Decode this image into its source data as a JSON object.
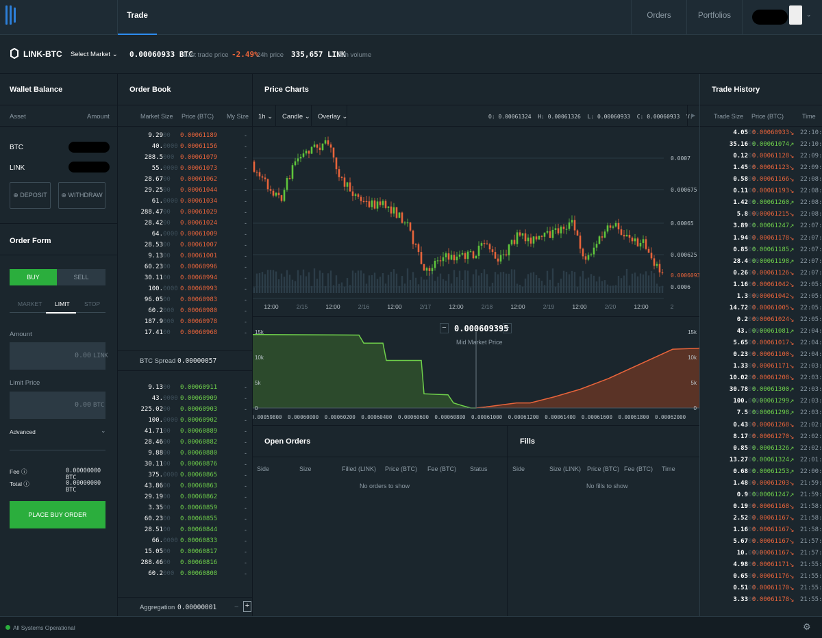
{
  "nav": {
    "trade": "Trade",
    "orders": "Orders",
    "portfolios": "Portfolios"
  },
  "ticker": {
    "market": "LINK-BTC",
    "select_market": "Select Market",
    "price": "0.00060933",
    "price_unit": "BTC",
    "price_label": "Last trade price",
    "change": "-2.49%",
    "change_label": "24h price",
    "volume": "335,657",
    "volume_unit": "LINK",
    "volume_label": "24h volume"
  },
  "wallet": {
    "title": "Wallet Balance",
    "col_asset": "Asset",
    "col_amount": "Amount",
    "assets": [
      "BTC",
      "LINK"
    ],
    "deposit": "DEPOSIT",
    "withdraw": "WITHDRAW"
  },
  "order_form": {
    "title": "Order Form",
    "buy": "BUY",
    "sell": "SELL",
    "tabs": [
      "MARKET",
      "LIMIT",
      "STOP"
    ],
    "amount_label": "Amount",
    "amount_value": "0.00",
    "amount_unit": "LINK",
    "limit_label": "Limit Price",
    "limit_value": "0.00",
    "limit_unit": "BTC",
    "advanced": "Advanced",
    "fee_label": "Fee",
    "fee_value": "0.00000000",
    "fee_unit": "BTC",
    "total_label": "Total",
    "total_value": "0.00000000",
    "total_unit": "BTC",
    "place": "PLACE BUY ORDER"
  },
  "order_book": {
    "title": "Order Book",
    "cols": [
      "Market Size",
      "Price (BTC)",
      "My Size"
    ],
    "asks": [
      [
        "9.29",
        "00",
        "0.00061189"
      ],
      [
        "40.",
        "0000",
        "0.00061156"
      ],
      [
        "288.5",
        "000",
        "0.00061079"
      ],
      [
        "55.",
        "0000",
        "0.00061073"
      ],
      [
        "28.67",
        "00",
        "0.00061062"
      ],
      [
        "29.25",
        "00",
        "0.00061044"
      ],
      [
        "61.",
        "0000",
        "0.00061034"
      ],
      [
        "288.47",
        "00",
        "0.00061029"
      ],
      [
        "28.42",
        "00",
        "0.00061024"
      ],
      [
        "64.",
        "0000",
        "0.00061009"
      ],
      [
        "28.53",
        "00",
        "0.00061007"
      ],
      [
        "9.13",
        "00",
        "0.00061001"
      ],
      [
        "60.23",
        "00",
        "0.00060996"
      ],
      [
        "30.11",
        "00",
        "0.00060994"
      ],
      [
        "100.",
        "0000",
        "0.00060993"
      ],
      [
        "96.05",
        "00",
        "0.00060983"
      ],
      [
        "60.2",
        "000",
        "0.00060980"
      ],
      [
        "187.9",
        "000",
        "0.00060978"
      ],
      [
        "17.41",
        "00",
        "0.00060968"
      ]
    ],
    "spread_label": "BTC Spread",
    "spread_value": "0.00000057",
    "bids": [
      [
        "9.13",
        "00",
        "0.00060911"
      ],
      [
        "43.",
        "0000",
        "0.00060909"
      ],
      [
        "225.02",
        "00",
        "0.00060903"
      ],
      [
        "100.",
        "0000",
        "0.00060902"
      ],
      [
        "41.71",
        "00",
        "0.00060889"
      ],
      [
        "28.46",
        "00",
        "0.00060882"
      ],
      [
        "9.88",
        "00",
        "0.00060880"
      ],
      [
        "30.11",
        "00",
        "0.00060876"
      ],
      [
        "375.",
        "0000",
        "0.00060865"
      ],
      [
        "43.86",
        "00",
        "0.00060863"
      ],
      [
        "29.19",
        "00",
        "0.00060862"
      ],
      [
        "3.35",
        "00",
        "0.00060859"
      ],
      [
        "60.23",
        "00",
        "0.00060855"
      ],
      [
        "28.51",
        "00",
        "0.00060844"
      ],
      [
        "66.",
        "0000",
        "0.00060833"
      ],
      [
        "15.05",
        "00",
        "0.00060817"
      ],
      [
        "288.46",
        "00",
        "0.00060816"
      ],
      [
        "60.2",
        "000",
        "0.00060808"
      ]
    ],
    "aggregation_label": "Aggregation",
    "aggregation_value": "0.00000001"
  },
  "price_chart": {
    "title": "Price Charts",
    "interval": "1h",
    "type": "Candle",
    "overlay": "Overlay",
    "ohlcv": "O: 0.00061324  H: 0.00061326  L: 0.00060933  C: 0.00060933  V:   323",
    "y_ticks": [
      "0.0007",
      "0.000675",
      "0.00065",
      "0.000625",
      "0.0006"
    ],
    "last_price": "0.00060933",
    "x_ticks": [
      "12:00",
      "2/15",
      "12:00",
      "2/16",
      "12:00",
      "2/17",
      "12:00",
      "2/18",
      "12:00",
      "2/19",
      "12:00",
      "2/20",
      "12:00",
      "2"
    ]
  },
  "depth": {
    "mid_price": "0.000609395",
    "mid_label": "Mid Market Price",
    "minus": "−",
    "plus": "+",
    "y_left": [
      "15k",
      "10k",
      "5k",
      "0"
    ],
    "y_right": [
      "15k",
      "10k",
      "5k",
      "0"
    ],
    "x_ticks": [
      "0.00059800",
      "0.00060000",
      "0.00060200",
      "0.00060400",
      "0.00060600",
      "0.00060800",
      "0.00061000",
      "0.00061200",
      "0.00061400",
      "0.00061600",
      "0.00061800",
      "0.00062000"
    ]
  },
  "open_orders": {
    "title": "Open Orders",
    "cols": [
      "Side",
      "Size",
      "Filled (LINK)",
      "Price (BTC)",
      "Fee (BTC)",
      "Status"
    ],
    "empty": "No orders to show"
  },
  "fills": {
    "title": "Fills",
    "cols": [
      "Side",
      "Size (LINK)",
      "Price (BTC)",
      "Fee (BTC)",
      "Time"
    ],
    "empty": "No fills to show"
  },
  "trade_history": {
    "title": "Trade History",
    "cols": [
      "Trade Size",
      "Price (BTC)",
      "Time"
    ],
    "rows": [
      [
        "4.05",
        "00",
        "0.00060933",
        "dn",
        "22:10:55"
      ],
      [
        "35.16",
        "00",
        "0.00061074",
        "up",
        "22:10:41"
      ],
      [
        "0.12",
        "00",
        "0.00061128",
        "dn",
        "22:09:43"
      ],
      [
        "1.45",
        "00",
        "0.00061123",
        "dn",
        "22:09:31"
      ],
      [
        "0.58",
        "00",
        "0.00061166",
        "dn",
        "22:08:48"
      ],
      [
        "0.11",
        "00",
        "0.00061193",
        "dn",
        "22:08:40"
      ],
      [
        "1.42",
        "00",
        "0.00061260",
        "up",
        "22:08:32"
      ],
      [
        "5.8",
        "000",
        "0.00061215",
        "dn",
        "22:08:08"
      ],
      [
        "3.89",
        "00",
        "0.00061247",
        "up",
        "22:07:57"
      ],
      [
        "1.94",
        "00",
        "0.00061178",
        "dn",
        "22:07:30"
      ],
      [
        "0.85",
        "00",
        "0.00061185",
        "up",
        "22:07:19"
      ],
      [
        "28.4",
        "000",
        "0.00061198",
        "up",
        "22:07:13"
      ],
      [
        "0.26",
        "00",
        "0.00061126",
        "dn",
        "22:07:06"
      ],
      [
        "1.16",
        "00",
        "0.00061042",
        "dn",
        "22:05:57"
      ],
      [
        "1.3",
        "000",
        "0.00061042",
        "dn",
        "22:05:56"
      ],
      [
        "14.72",
        "00",
        "0.00061005",
        "dn",
        "22:05:21"
      ],
      [
        "0.2",
        "000",
        "0.00061024",
        "dn",
        "22:05:01"
      ],
      [
        "43.",
        "0000",
        "0.00061081",
        "up",
        "22:04:45"
      ],
      [
        "5.65",
        "00",
        "0.00061017",
        "dn",
        "22:04:44"
      ],
      [
        "0.23",
        "00",
        "0.00061100",
        "dn",
        "22:04:22"
      ],
      [
        "1.33",
        "00",
        "0.00061171",
        "dn",
        "22:03:18"
      ],
      [
        "10.02",
        "00",
        "0.00061208",
        "dn",
        "22:03:12"
      ],
      [
        "30.78",
        "00",
        "0.00061300",
        "up",
        "22:03:06"
      ],
      [
        "100.",
        "0000",
        "0.00061299",
        "up",
        "22:03:06"
      ],
      [
        "7.5",
        "000",
        "0.00061298",
        "up",
        "22:03:06"
      ],
      [
        "0.43",
        "00",
        "0.00061268",
        "dn",
        "22:02:24"
      ],
      [
        "8.17",
        "00",
        "0.00061270",
        "dn",
        "22:02:24"
      ],
      [
        "0.85",
        "00",
        "0.00061326",
        "up",
        "22:02:20"
      ],
      [
        "13.27",
        "00",
        "0.00061324",
        "up",
        "22:01:01"
      ],
      [
        "0.68",
        "00",
        "0.00061253",
        "up",
        "22:00:55"
      ],
      [
        "1.48",
        "00",
        "0.00061203",
        "dn",
        "21:59:40"
      ],
      [
        "0.9",
        "000",
        "0.00061247",
        "up",
        "21:59:23"
      ],
      [
        "0.19",
        "00",
        "0.00061168",
        "dn",
        "21:58:42"
      ],
      [
        "2.52",
        "00",
        "0.00061167",
        "dn",
        "21:58:19"
      ],
      [
        "1.16",
        "00",
        "0.00061167",
        "dn",
        "21:58:15"
      ],
      [
        "5.67",
        "00",
        "0.00061167",
        "dn",
        "21:57:57"
      ],
      [
        "10.",
        "0000",
        "0.00061167",
        "dn",
        "21:57:33"
      ],
      [
        "4.98",
        "00",
        "0.00061171",
        "dn",
        "21:55:51"
      ],
      [
        "0.65",
        "00",
        "0.00061176",
        "dn",
        "21:55:15"
      ],
      [
        "0.51",
        "00",
        "0.00061170",
        "dn",
        "21:55:03"
      ],
      [
        "3.33",
        "00",
        "0.00061178",
        "dn",
        "21:55:00"
      ]
    ]
  },
  "status": {
    "text": "All Systems Operational"
  }
}
